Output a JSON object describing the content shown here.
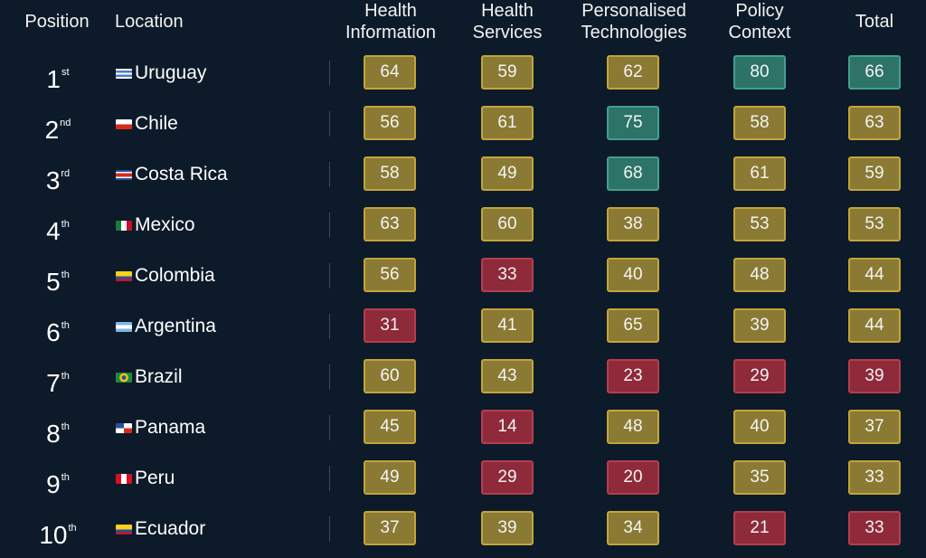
{
  "headers": {
    "position": "Position",
    "location": "Location",
    "health_information": [
      "Health",
      "Information"
    ],
    "health_services": [
      "Health",
      "Services"
    ],
    "personalised_technologies": [
      "Personalised",
      "Technologies"
    ],
    "policy_context": [
      "Policy",
      "Context"
    ],
    "total": "Total"
  },
  "colors": {
    "background": "#0d1a29",
    "mid": "#8a7a34",
    "high": "#2d7367",
    "low": "#8e2a3a"
  },
  "chart_data": {
    "type": "table",
    "columns": [
      "Position",
      "Location",
      "Health Information",
      "Health Services",
      "Personalised Technologies",
      "Policy Context",
      "Total"
    ],
    "rows": [
      {
        "rank": "1",
        "suffix": "st",
        "location": "Uruguay",
        "flag": "uruguay-flag-icon",
        "values": [
          64,
          59,
          62,
          80,
          66
        ],
        "levels": [
          "mid",
          "mid",
          "mid",
          "high",
          "high"
        ]
      },
      {
        "rank": "2",
        "suffix": "nd",
        "location": "Chile",
        "flag": "chile-flag-icon",
        "values": [
          56,
          61,
          75,
          58,
          63
        ],
        "levels": [
          "mid",
          "mid",
          "high",
          "mid",
          "mid"
        ]
      },
      {
        "rank": "3",
        "suffix": "rd",
        "location": "Costa Rica",
        "flag": "costa-rica-flag-icon",
        "values": [
          58,
          49,
          68,
          61,
          59
        ],
        "levels": [
          "mid",
          "mid",
          "high",
          "mid",
          "mid"
        ]
      },
      {
        "rank": "4",
        "suffix": "th",
        "location": "Mexico",
        "flag": "mexico-flag-icon",
        "values": [
          63,
          60,
          38,
          53,
          53
        ],
        "levels": [
          "mid",
          "mid",
          "mid",
          "mid",
          "mid"
        ]
      },
      {
        "rank": "5",
        "suffix": "th",
        "location": "Colombia",
        "flag": "colombia-flag-icon",
        "values": [
          56,
          33,
          40,
          48,
          44
        ],
        "levels": [
          "mid",
          "low",
          "mid",
          "mid",
          "mid"
        ]
      },
      {
        "rank": "6",
        "suffix": "th",
        "location": "Argentina",
        "flag": "argentina-flag-icon",
        "values": [
          31,
          41,
          65,
          39,
          44
        ],
        "levels": [
          "low",
          "mid",
          "mid",
          "mid",
          "mid"
        ]
      },
      {
        "rank": "7",
        "suffix": "th",
        "location": "Brazil",
        "flag": "brazil-flag-icon",
        "values": [
          60,
          43,
          23,
          29,
          39
        ],
        "levels": [
          "mid",
          "mid",
          "low",
          "low",
          "low"
        ]
      },
      {
        "rank": "8",
        "suffix": "th",
        "location": "Panama",
        "flag": "panama-flag-icon",
        "values": [
          45,
          14,
          48,
          40,
          37
        ],
        "levels": [
          "mid",
          "low",
          "mid",
          "mid",
          "mid"
        ]
      },
      {
        "rank": "9",
        "suffix": "th",
        "location": "Peru",
        "flag": "peru-flag-icon",
        "values": [
          49,
          29,
          20,
          35,
          33
        ],
        "levels": [
          "mid",
          "low",
          "low",
          "mid",
          "mid"
        ]
      },
      {
        "rank": "10",
        "suffix": "th",
        "location": "Ecuador",
        "flag": "ecuador-flag-icon",
        "values": [
          37,
          39,
          34,
          21,
          33
        ],
        "levels": [
          "mid",
          "mid",
          "mid",
          "low",
          "low"
        ]
      }
    ]
  }
}
